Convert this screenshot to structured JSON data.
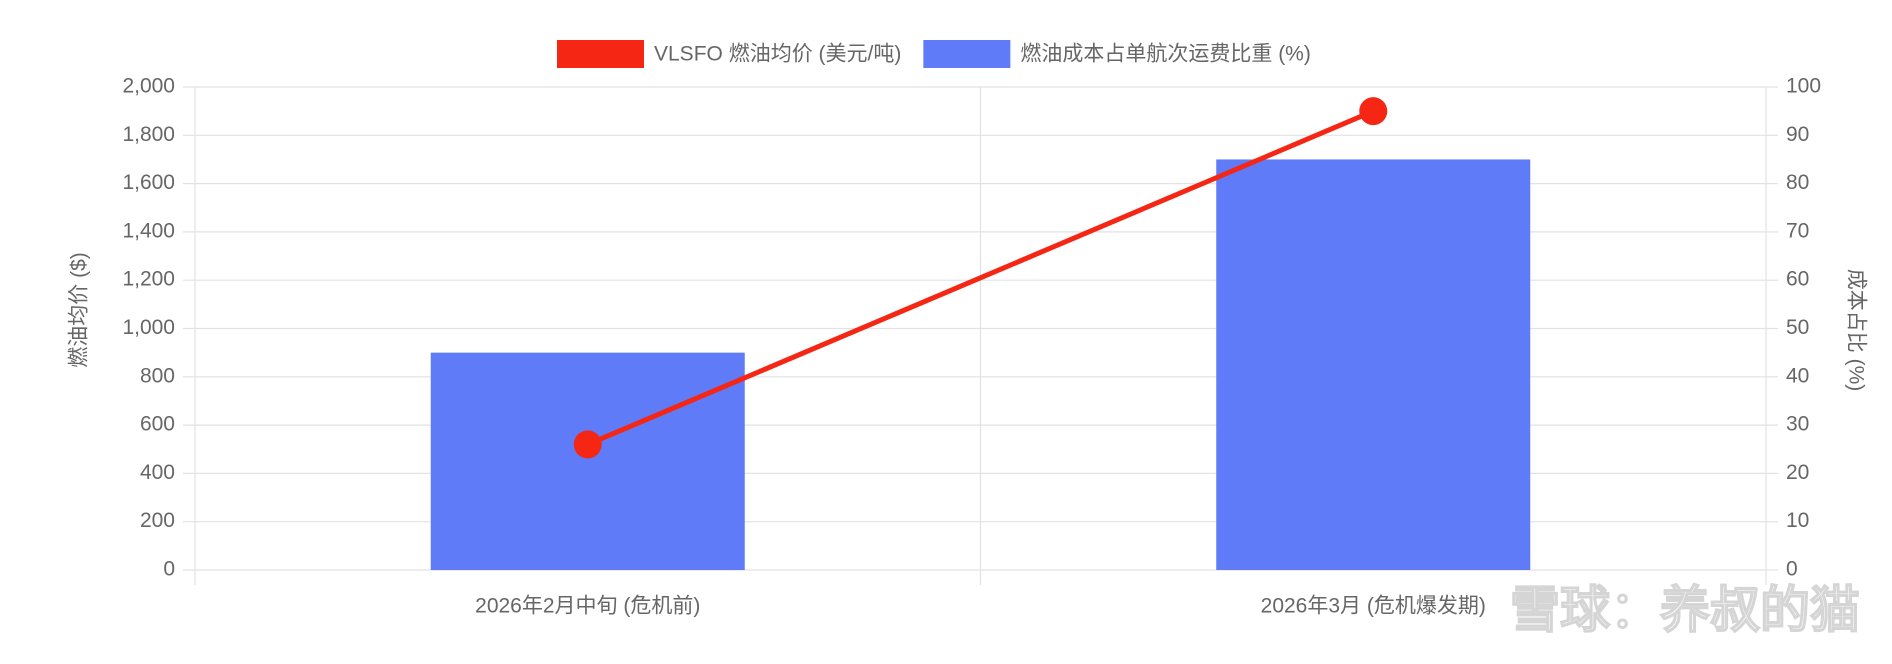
{
  "chart_data": {
    "type": "bar-line",
    "categories": [
      "2026年2月中旬 (危机前)",
      "2026年3月 (危机爆发期)"
    ],
    "series": [
      {
        "name": "VLSFO 燃油均价 (美元/吨)",
        "type": "line",
        "color": "#f52714",
        "axis": "y",
        "values": [
          520,
          1900
        ]
      },
      {
        "name": "燃油成本占单航次运费比重 (%)",
        "type": "bar",
        "color": "#5f7bf8",
        "axis": "y2",
        "values": [
          45,
          85
        ]
      }
    ],
    "ylabel": "燃油均价 ($)",
    "y2label": "成本占比 (%)",
    "ylim": [
      0,
      2000
    ],
    "yticks": [
      0,
      200,
      400,
      600,
      800,
      {
        "value": 1000,
        "label": "1,000"
      },
      {
        "value": 1200,
        "label": "1,200"
      },
      {
        "value": 1400,
        "label": "1,400"
      },
      {
        "value": 1600,
        "label": "1,600"
      },
      {
        "value": 1800,
        "label": "1,800"
      },
      {
        "value": 2000,
        "label": "2,000"
      }
    ],
    "y2lim": [
      0,
      100
    ],
    "y2ticks": [
      0,
      10,
      20,
      30,
      40,
      50,
      60,
      70,
      80,
      90,
      100
    ],
    "grid": true,
    "legend": "top",
    "watermark": "雪球：养叔的猫"
  }
}
